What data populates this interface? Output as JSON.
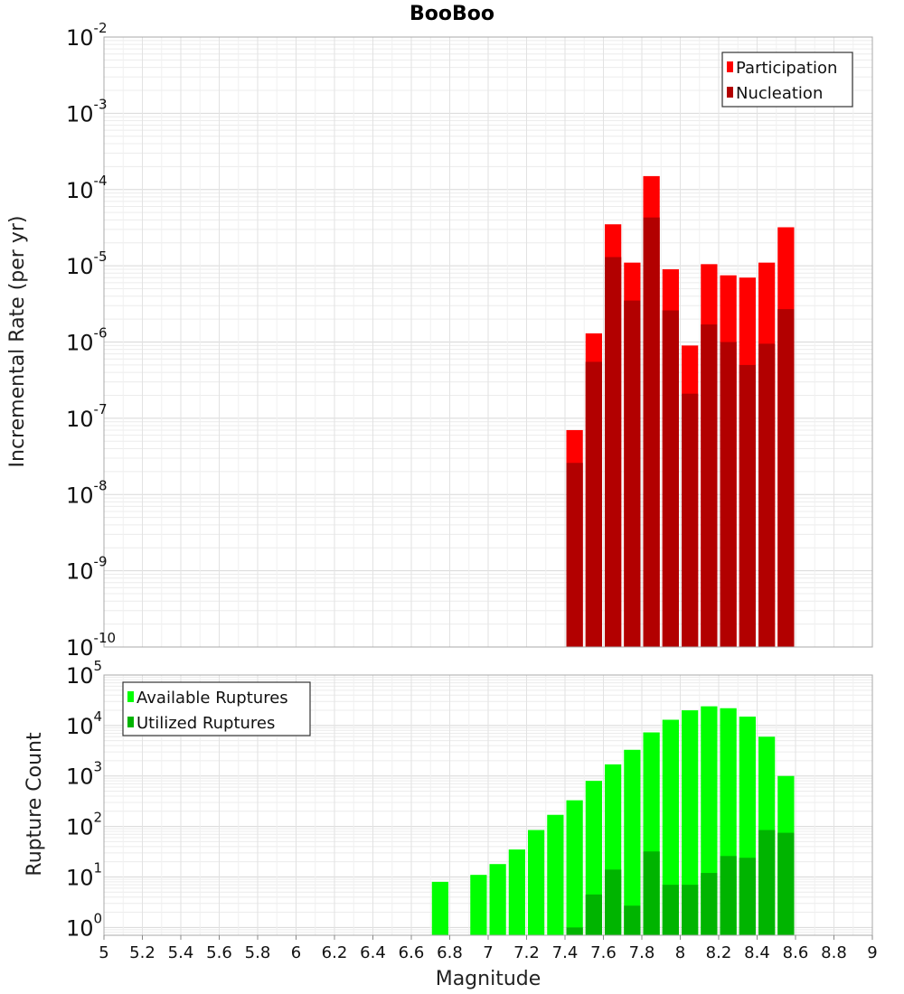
{
  "chart_data": [
    {
      "type": "bar",
      "title": "BooBoo",
      "xlabel": "",
      "ylabel": "Incremental Rate (per yr)",
      "xlim": [
        5,
        9
      ],
      "ylim": [
        1e-10,
        0.01
      ],
      "yscale": "log",
      "grid": true,
      "legend_position": "top-right",
      "bin_width": 0.1,
      "x": [
        7.45,
        7.55,
        7.65,
        7.75,
        7.85,
        7.95,
        8.05,
        8.15,
        8.25,
        8.35,
        8.45,
        8.55
      ],
      "y_ticks": [
        {
          "base": "10",
          "exp": "-10"
        },
        {
          "base": "10",
          "exp": "-9"
        },
        {
          "base": "10",
          "exp": "-8"
        },
        {
          "base": "10",
          "exp": "-7"
        },
        {
          "base": "10",
          "exp": "-6"
        },
        {
          "base": "10",
          "exp": "-5"
        },
        {
          "base": "10",
          "exp": "-4"
        },
        {
          "base": "10",
          "exp": "-3"
        },
        {
          "base": "10",
          "exp": "-2"
        }
      ],
      "series": [
        {
          "name": "Participation",
          "color": "#ff0000",
          "values": [
            7e-08,
            1.3e-06,
            3.5e-05,
            1.1e-05,
            0.00015,
            9e-06,
            9e-07,
            1.05e-05,
            7.5e-06,
            7e-06,
            1.1e-05,
            3.2e-05
          ]
        },
        {
          "name": "Nucleation",
          "color": "#b20000",
          "values": [
            2.6e-08,
            5.5e-07,
            1.3e-05,
            3.5e-06,
            4.3e-05,
            2.6e-06,
            2.1e-07,
            1.7e-06,
            1e-06,
            5e-07,
            9.5e-07,
            2.7e-06
          ]
        }
      ]
    },
    {
      "type": "bar",
      "title": "",
      "xlabel": "Magnitude",
      "ylabel": "Rupture Count",
      "xlim": [
        5,
        9
      ],
      "ylim": [
        0.7,
        100000.0
      ],
      "yscale": "log",
      "grid": true,
      "legend_position": "top-left",
      "bin_width": 0.1,
      "x": [
        6.75,
        6.95,
        7.05,
        7.15,
        7.25,
        7.35,
        7.45,
        7.55,
        7.65,
        7.75,
        7.85,
        7.95,
        8.05,
        8.15,
        8.25,
        8.35,
        8.45,
        8.55
      ],
      "x_ticks": [
        "5",
        "5.2",
        "5.4",
        "5.6",
        "5.8",
        "6",
        "6.2",
        "6.4",
        "6.6",
        "6.8",
        "7",
        "7.2",
        "7.4",
        "7.6",
        "7.8",
        "8",
        "8.2",
        "8.4",
        "8.6",
        "8.8",
        "9"
      ],
      "y_ticks": [
        {
          "base": "10",
          "exp": "0"
        },
        {
          "base": "10",
          "exp": "1"
        },
        {
          "base": "10",
          "exp": "2"
        },
        {
          "base": "10",
          "exp": "3"
        },
        {
          "base": "10",
          "exp": "4"
        },
        {
          "base": "10",
          "exp": "5"
        }
      ],
      "series": [
        {
          "name": "Available Ruptures",
          "color": "#00ff00",
          "values": [
            8,
            11,
            18,
            35,
            85,
            170,
            330,
            800,
            1700,
            3300,
            7300,
            13000,
            20000,
            24000,
            22000,
            15000,
            6000,
            1000
          ]
        },
        {
          "name": "Utilized Ruptures",
          "color": "#00b400",
          "values": [
            null,
            null,
            null,
            null,
            null,
            null,
            1,
            4.5,
            14,
            2.7,
            32,
            7,
            7,
            12,
            26,
            24,
            85,
            75
          ]
        }
      ]
    }
  ]
}
